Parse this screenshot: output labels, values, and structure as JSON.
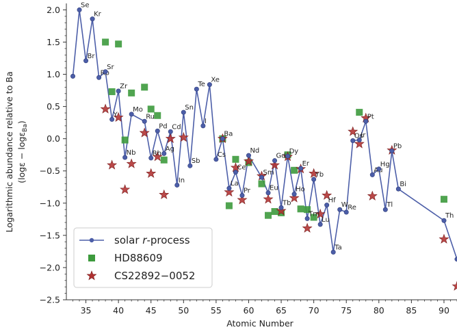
{
  "chart_data": {
    "type": "scatter",
    "xlabel": "Atomic Number",
    "ylabel_line1": "Logarithmic abundance relative to Ba",
    "ylabel_line2": "(logε − logε",
    "ylabel_line2_sub": "Ba",
    "ylabel_line2_end": ")",
    "xlim": [
      32,
      92
    ],
    "ylim": [
      -2.5,
      2.1
    ],
    "x_ticks": [
      35,
      40,
      45,
      50,
      55,
      60,
      65,
      70,
      75,
      80,
      85,
      90
    ],
    "y_ticks": [
      -2.5,
      -2.0,
      -1.5,
      -1.0,
      -0.5,
      0.0,
      0.5,
      1.0,
      1.5,
      2.0
    ],
    "y_tick_labels": [
      "−2.5",
      "−2.0",
      "−1.5",
      "−1.0",
      "−0.5",
      "0.0",
      "0.5",
      "1.0",
      "1.5",
      "2.0"
    ],
    "legend": {
      "placement": "lower-left",
      "entries": [
        {
          "label_pre": "solar ",
          "label_ital": "r",
          "label_post": "-process"
        },
        {
          "label_pre": "HD88609",
          "label_ital": "",
          "label_post": ""
        },
        {
          "label_pre": "CS22892−0052",
          "label_ital": "",
          "label_post": ""
        }
      ]
    },
    "colors": {
      "solar": "#4c5ea8",
      "hd": "#3d9a3d",
      "cs": "#b03030"
    },
    "series": [
      {
        "name": "solar r-process",
        "marker": "circle-line",
        "points": [
          [
            33,
            0.97,
            ""
          ],
          [
            34,
            2.0,
            "Se"
          ],
          [
            35,
            1.21,
            "Br"
          ],
          [
            36,
            1.86,
            "Kr"
          ],
          [
            37,
            0.95,
            "Rb"
          ],
          [
            38,
            1.04,
            "Sr"
          ],
          [
            39,
            0.3,
            "Y"
          ],
          [
            40,
            0.74,
            "Zr"
          ],
          [
            41,
            -0.29,
            "Nb"
          ],
          [
            42,
            0.38,
            "Mo"
          ],
          [
            44,
            0.27,
            "Ru"
          ],
          [
            45,
            -0.3,
            "Rh"
          ],
          [
            46,
            0.12,
            "Pd"
          ],
          [
            47,
            -0.23,
            "Ag"
          ],
          [
            48,
            0.11,
            "Cd"
          ],
          [
            49,
            -0.72,
            "In"
          ],
          [
            50,
            0.41,
            "Sn"
          ],
          [
            51,
            -0.42,
            "Sb"
          ],
          [
            52,
            0.77,
            "Te"
          ],
          [
            53,
            0.2,
            "I"
          ],
          [
            54,
            0.84,
            "Xe"
          ],
          [
            55,
            -0.32,
            "Cs"
          ],
          [
            56,
            0.0,
            "Ba"
          ],
          [
            57,
            -0.77,
            "La"
          ],
          [
            58,
            -0.52,
            "Ce"
          ],
          [
            59,
            -0.88,
            "Pr"
          ],
          [
            60,
            -0.26,
            "Nd"
          ],
          [
            62,
            -0.6,
            "Sm"
          ],
          [
            63,
            -0.84,
            "Eu"
          ],
          [
            64,
            -0.34,
            "Gd"
          ],
          [
            65,
            -1.07,
            "Tb"
          ],
          [
            66,
            -0.27,
            "Dy"
          ],
          [
            67,
            -0.86,
            "Ho"
          ],
          [
            68,
            -0.46,
            "Er"
          ],
          [
            69,
            -1.24,
            "Tm"
          ],
          [
            70,
            -0.63,
            "Yb"
          ],
          [
            71,
            -1.33,
            "Lu"
          ],
          [
            72,
            -1.03,
            "Hf"
          ],
          [
            73,
            -1.76,
            "Ta"
          ],
          [
            74,
            -1.1,
            "W"
          ],
          [
            75,
            -1.14,
            "Re"
          ],
          [
            76,
            -0.03,
            "Os"
          ],
          [
            77,
            -0.02,
            "Ir"
          ],
          [
            78,
            0.27,
            "Pt"
          ],
          [
            79,
            -0.56,
            "Au"
          ],
          [
            80,
            -0.47,
            "Hg"
          ],
          [
            81,
            -1.1,
            "Tl"
          ],
          [
            82,
            -0.19,
            "Pb"
          ],
          [
            83,
            -0.78,
            "Bi"
          ],
          [
            90,
            -1.27,
            "Th"
          ],
          [
            92,
            -1.87,
            "U"
          ]
        ]
      },
      {
        "name": "HD88609",
        "marker": "square",
        "points": [
          [
            38,
            1.5
          ],
          [
            39,
            0.73
          ],
          [
            40,
            1.47
          ],
          [
            41,
            -0.02
          ],
          [
            42,
            0.71
          ],
          [
            44,
            0.8
          ],
          [
            45,
            0.46
          ],
          [
            46,
            0.36
          ],
          [
            47,
            -0.33
          ],
          [
            56,
            0.0
          ],
          [
            57,
            -1.04
          ],
          [
            58,
            -0.32
          ],
          [
            60,
            -0.37
          ],
          [
            62,
            -0.7
          ],
          [
            63,
            -1.19
          ],
          [
            64,
            -1.13
          ],
          [
            65,
            -1.15
          ],
          [
            66,
            -0.25
          ],
          [
            67,
            -0.49
          ],
          [
            68,
            -1.09
          ],
          [
            69,
            -1.1
          ],
          [
            70,
            -1.22
          ],
          [
            77,
            0.41
          ],
          [
            90,
            -0.94
          ]
        ]
      },
      {
        "name": "CS22892-0052",
        "marker": "star",
        "points": [
          [
            38,
            0.46
          ],
          [
            39,
            -0.41
          ],
          [
            40,
            0.33
          ],
          [
            41,
            -0.79
          ],
          [
            42,
            -0.39
          ],
          [
            44,
            0.09
          ],
          [
            45,
            -0.54
          ],
          [
            46,
            -0.28
          ],
          [
            47,
            -0.87
          ],
          [
            48,
            0.0
          ],
          [
            50,
            0.02
          ],
          [
            56,
            0.0
          ],
          [
            57,
            -0.83
          ],
          [
            58,
            -0.45
          ],
          [
            59,
            -0.95
          ],
          [
            60,
            -0.35
          ],
          [
            62,
            -0.58
          ],
          [
            63,
            -0.94
          ],
          [
            64,
            -0.41
          ],
          [
            65,
            -1.12
          ],
          [
            66,
            -0.28
          ],
          [
            67,
            -0.92
          ],
          [
            68,
            -0.47
          ],
          [
            69,
            -1.39
          ],
          [
            70,
            -0.54
          ],
          [
            71,
            -1.17
          ],
          [
            72,
            -0.88
          ],
          [
            76,
            0.11
          ],
          [
            77,
            -0.08
          ],
          [
            78,
            0.32
          ],
          [
            79,
            -0.89
          ],
          [
            82,
            -0.18
          ],
          [
            90,
            -1.56
          ],
          [
            92,
            -2.29
          ]
        ]
      }
    ]
  }
}
